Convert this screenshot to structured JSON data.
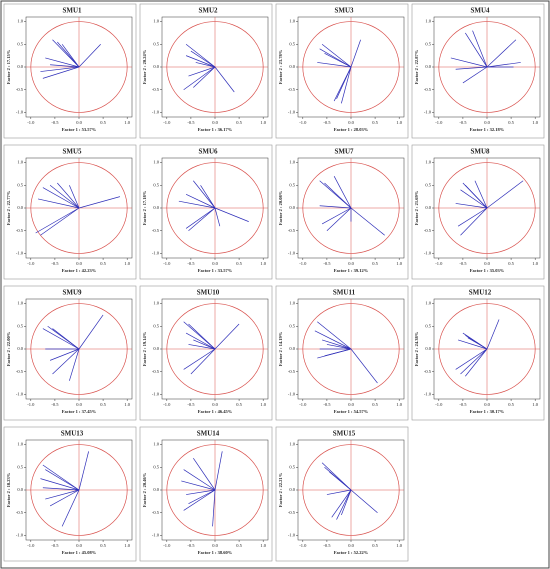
{
  "chart_data": [
    {
      "type": "vector",
      "title": "SMU1",
      "xlabel": "Factor 1 : 53.57%",
      "ylabel": "Factor 2 : 17.15%",
      "color": "#2e2eb8",
      "circle_color": "#d9534f",
      "xlim": [
        -1.1,
        1.1
      ],
      "ylim": [
        -1.1,
        1.1
      ],
      "xticks": [
        {
          "value": -1,
          "label": "-1.0"
        },
        {
          "value": -0.5,
          "label": "-0.5"
        },
        {
          "value": 0,
          "label": "0.0"
        },
        {
          "value": 0.5,
          "label": "0.5"
        },
        {
          "value": 1,
          "label": "1.0"
        }
      ],
      "yticks": [
        {
          "value": -1,
          "label": "-1.0"
        },
        {
          "value": -0.5,
          "label": "-0.5"
        },
        {
          "value": 0,
          "label": "0.0"
        },
        {
          "value": 0.5,
          "label": "0.5"
        },
        {
          "value": 1,
          "label": "1.0"
        }
      ],
      "x": [
        -0.55,
        -0.45,
        -0.35,
        -0.7,
        -0.8,
        -0.75,
        -0.6,
        0.45
      ],
      "y": [
        0.6,
        0.55,
        0.5,
        0.2,
        -0.1,
        -0.25,
        0.05,
        0.5
      ]
    },
    {
      "type": "vector",
      "title": "SMU2",
      "xlabel": "Factor 1 : 36.17%",
      "ylabel": "Factor 2 : 20.24%",
      "color": "#2e2eb8",
      "circle_color": "#d9534f",
      "xlim": [
        -1.1,
        1.1
      ],
      "ylim": [
        -1.1,
        1.1
      ],
      "xticks": [
        {
          "value": -1,
          "label": "-1.0"
        },
        {
          "value": -0.5,
          "label": "-0.5"
        },
        {
          "value": 0,
          "label": "0.0"
        },
        {
          "value": 0.5,
          "label": "0.5"
        },
        {
          "value": 1,
          "label": "1.0"
        }
      ],
      "yticks": [
        {
          "value": -1,
          "label": "-1.0"
        },
        {
          "value": -0.5,
          "label": "-0.5"
        },
        {
          "value": 0,
          "label": "0.0"
        },
        {
          "value": 0.5,
          "label": "0.5"
        },
        {
          "value": 1,
          "label": "1.0"
        }
      ],
      "x": [
        -0.6,
        -0.5,
        -0.55,
        -0.45,
        -0.65,
        -0.4,
        -0.6,
        0.4
      ],
      "y": [
        0.5,
        0.35,
        -0.2,
        -0.45,
        -0.5,
        0.1,
        0.25,
        -0.55
      ]
    },
    {
      "type": "vector",
      "title": "SMU3",
      "xlabel": "Factor 1 : 28.03%",
      "ylabel": "Factor 2 : 23.78%",
      "color": "#2e2eb8",
      "circle_color": "#d9534f",
      "xlim": [
        -1.1,
        1.1
      ],
      "ylim": [
        -1.1,
        1.1
      ],
      "xticks": [
        {
          "value": -1,
          "label": "-1.0"
        },
        {
          "value": -0.5,
          "label": "-0.5"
        },
        {
          "value": 0,
          "label": "0.0"
        },
        {
          "value": 0.5,
          "label": "0.5"
        },
        {
          "value": 1,
          "label": "1.0"
        }
      ],
      "yticks": [
        {
          "value": -1,
          "label": "-1.0"
        },
        {
          "value": -0.5,
          "label": "-0.5"
        },
        {
          "value": 0,
          "label": "0.0"
        },
        {
          "value": 0.5,
          "label": "0.5"
        },
        {
          "value": 1,
          "label": "1.0"
        }
      ],
      "x": [
        -0.6,
        -0.65,
        -0.55,
        -0.7,
        -0.3,
        -0.35,
        -0.2,
        0.2
      ],
      "y": [
        0.5,
        0.4,
        0.3,
        0.1,
        -0.7,
        -0.75,
        -0.8,
        0.6
      ]
    },
    {
      "type": "vector",
      "title": "SMU4",
      "xlabel": "Factor 1 : 32.18%",
      "ylabel": "Factor 2 : 22.87%",
      "color": "#2e2eb8",
      "circle_color": "#d9534f",
      "xlim": [
        -1.1,
        1.1
      ],
      "ylim": [
        -1.1,
        1.1
      ],
      "xticks": [
        {
          "value": -1,
          "label": "-1.0"
        },
        {
          "value": -0.5,
          "label": "-0.5"
        },
        {
          "value": 0,
          "label": "0.0"
        },
        {
          "value": 0.5,
          "label": "0.5"
        },
        {
          "value": 1,
          "label": "1.0"
        }
      ],
      "yticks": [
        {
          "value": -1,
          "label": "-1.0"
        },
        {
          "value": -0.5,
          "label": "-0.5"
        },
        {
          "value": 0,
          "label": "0.0"
        },
        {
          "value": 0.5,
          "label": "0.5"
        },
        {
          "value": 1,
          "label": "1.0"
        }
      ],
      "x": [
        -0.45,
        -0.3,
        -0.75,
        -0.65,
        -0.5,
        0.6,
        0.7,
        0.55
      ],
      "y": [
        0.75,
        0.8,
        0.2,
        -0.05,
        -0.35,
        0.6,
        0.1,
        0.0
      ]
    },
    {
      "type": "vector",
      "title": "SMU5",
      "xlabel": "Factor 1 : 42.23%",
      "ylabel": "Factor 2 : 22.77%",
      "color": "#2e2eb8",
      "circle_color": "#d9534f",
      "xlim": [
        -1.1,
        1.1
      ],
      "ylim": [
        -1.1,
        1.1
      ],
      "xticks": [
        {
          "value": -1,
          "label": "-1.0"
        },
        {
          "value": -0.5,
          "label": "-0.5"
        },
        {
          "value": 0,
          "label": "0.0"
        },
        {
          "value": 0.5,
          "label": "0.5"
        },
        {
          "value": 1,
          "label": "1.0"
        }
      ],
      "yticks": [
        {
          "value": -1,
          "label": "-1.0"
        },
        {
          "value": -0.5,
          "label": "-0.5"
        },
        {
          "value": 0,
          "label": "0.0"
        },
        {
          "value": 0.5,
          "label": "0.5"
        },
        {
          "value": 1,
          "label": "1.0"
        }
      ],
      "x": [
        -0.75,
        -0.6,
        -0.45,
        -0.85,
        -0.9,
        -0.8,
        -0.2,
        0.85
      ],
      "y": [
        0.45,
        0.5,
        0.55,
        0.2,
        -0.55,
        -0.6,
        0.5,
        0.25
      ]
    },
    {
      "type": "vector",
      "title": "SMU6",
      "xlabel": "Factor 1 : 33.57%",
      "ylabel": "Factor 2 : 17.18%",
      "color": "#2e2eb8",
      "circle_color": "#d9534f",
      "xlim": [
        -1.1,
        1.1
      ],
      "ylim": [
        -1.1,
        1.1
      ],
      "xticks": [
        {
          "value": -1,
          "label": "-1.0"
        },
        {
          "value": -0.5,
          "label": "-0.5"
        },
        {
          "value": 0,
          "label": "0.0"
        },
        {
          "value": 0.5,
          "label": "0.5"
        },
        {
          "value": 1,
          "label": "1.0"
        }
      ],
      "yticks": [
        {
          "value": -1,
          "label": "-1.0"
        },
        {
          "value": -0.5,
          "label": "-0.5"
        },
        {
          "value": 0,
          "label": "0.0"
        },
        {
          "value": 0.5,
          "label": "0.5"
        },
        {
          "value": 1,
          "label": "1.0"
        }
      ],
      "x": [
        -0.75,
        -0.6,
        -0.45,
        -0.6,
        -0.55,
        0.1,
        0.7,
        -0.3
      ],
      "y": [
        0.15,
        0.3,
        0.6,
        -0.45,
        -0.5,
        -0.4,
        -0.3,
        0.5
      ]
    },
    {
      "type": "vector",
      "title": "SMU7",
      "xlabel": "Factor 1 : 39.12%",
      "ylabel": "Factor 2 : 20.08%",
      "color": "#2e2eb8",
      "circle_color": "#d9534f",
      "xlim": [
        -1.1,
        1.1
      ],
      "ylim": [
        -1.1,
        1.1
      ],
      "xticks": [
        {
          "value": -1,
          "label": "-1.0"
        },
        {
          "value": -0.5,
          "label": "-0.5"
        },
        {
          "value": 0,
          "label": "0.0"
        },
        {
          "value": 0.5,
          "label": "0.5"
        },
        {
          "value": 1,
          "label": "1.0"
        }
      ],
      "yticks": [
        {
          "value": -1,
          "label": "-1.0"
        },
        {
          "value": -0.5,
          "label": "-0.5"
        },
        {
          "value": 0,
          "label": "0.0"
        },
        {
          "value": 0.5,
          "label": "0.5"
        },
        {
          "value": 1,
          "label": "1.0"
        }
      ],
      "x": [
        -0.65,
        -0.55,
        -0.35,
        -0.65,
        -0.6,
        -0.5,
        0.0,
        0.7
      ],
      "y": [
        0.6,
        0.55,
        0.7,
        0.05,
        -0.35,
        -0.5,
        -0.3,
        -0.6
      ]
    },
    {
      "type": "vector",
      "title": "SMU8",
      "xlabel": "Factor 1 : 35.03%",
      "ylabel": "Factor 2 : 21.69%",
      "color": "#2e2eb8",
      "circle_color": "#d9534f",
      "xlim": [
        -1.1,
        1.1
      ],
      "ylim": [
        -1.1,
        1.1
      ],
      "xticks": [
        {
          "value": -1,
          "label": "-1.0"
        },
        {
          "value": -0.5,
          "label": "-0.5"
        },
        {
          "value": 0,
          "label": "0.0"
        },
        {
          "value": 0.5,
          "label": "0.5"
        },
        {
          "value": 1,
          "label": "1.0"
        }
      ],
      "yticks": [
        {
          "value": -1,
          "label": "-1.0"
        },
        {
          "value": -0.5,
          "label": "-0.5"
        },
        {
          "value": 0,
          "label": "0.0"
        },
        {
          "value": 0.5,
          "label": "0.5"
        },
        {
          "value": 1,
          "label": "1.0"
        }
      ],
      "x": [
        -0.5,
        -0.45,
        -0.55,
        -0.65,
        -0.6,
        -0.55,
        -0.25,
        0.75
      ],
      "y": [
        0.55,
        0.5,
        0.4,
        0.1,
        -0.4,
        -0.6,
        0.6,
        0.6
      ]
    },
    {
      "type": "vector",
      "title": "SMU9",
      "xlabel": "Factor 1 : 37.45%",
      "ylabel": "Factor 2 : 22.00%",
      "color": "#2e2eb8",
      "circle_color": "#d9534f",
      "xlim": [
        -1.1,
        1.1
      ],
      "ylim": [
        -1.1,
        1.1
      ],
      "xticks": [
        {
          "value": -1,
          "label": "-1.0"
        },
        {
          "value": -0.5,
          "label": "-0.5"
        },
        {
          "value": 0,
          "label": "0.0"
        },
        {
          "value": 0.5,
          "label": "0.5"
        },
        {
          "value": 1,
          "label": "1.0"
        }
      ],
      "yticks": [
        {
          "value": -1,
          "label": "-1.0"
        },
        {
          "value": -0.5,
          "label": "-0.5"
        },
        {
          "value": 0,
          "label": "0.0"
        },
        {
          "value": 0.5,
          "label": "0.5"
        },
        {
          "value": 1,
          "label": "1.0"
        }
      ],
      "x": [
        -0.75,
        -0.65,
        -0.55,
        -0.7,
        -0.6,
        -0.55,
        -0.2,
        0.5
      ],
      "y": [
        0.45,
        0.5,
        0.45,
        0.0,
        -0.25,
        -0.55,
        -0.7,
        0.75
      ]
    },
    {
      "type": "vector",
      "title": "SMU10",
      "xlabel": "Factor 1 : 46.45%",
      "ylabel": "Factor 2 : 19.14%",
      "color": "#2e2eb8",
      "circle_color": "#d9534f",
      "xlim": [
        -1.1,
        1.1
      ],
      "ylim": [
        -1.1,
        1.1
      ],
      "xticks": [
        {
          "value": -1,
          "label": "-1.0"
        },
        {
          "value": -0.5,
          "label": "-0.5"
        },
        {
          "value": 0,
          "label": "0.0"
        },
        {
          "value": 0.5,
          "label": "0.5"
        },
        {
          "value": 1,
          "label": "1.0"
        }
      ],
      "yticks": [
        {
          "value": -1,
          "label": "-1.0"
        },
        {
          "value": -0.5,
          "label": "-0.5"
        },
        {
          "value": 0,
          "label": "0.0"
        },
        {
          "value": 0.5,
          "label": "0.5"
        },
        {
          "value": 1,
          "label": "1.0"
        }
      ],
      "x": [
        -0.65,
        -0.55,
        -0.6,
        -0.55,
        -0.65,
        -0.5,
        -0.45,
        0.5
      ],
      "y": [
        0.6,
        0.55,
        0.35,
        0.1,
        -0.45,
        -0.55,
        0.2,
        0.55
      ]
    },
    {
      "type": "vector",
      "title": "SMU11",
      "xlabel": "Factor 1 : 54.57%",
      "ylabel": "Factor 2 : 14.19%",
      "color": "#2e2eb8",
      "circle_color": "#d9534f",
      "xlim": [
        -1.1,
        1.1
      ],
      "ylim": [
        -1.1,
        1.1
      ],
      "xticks": [
        {
          "value": -1,
          "label": "-1.0"
        },
        {
          "value": -0.5,
          "label": "-0.5"
        },
        {
          "value": 0,
          "label": "0.0"
        },
        {
          "value": 0.5,
          "label": "0.5"
        },
        {
          "value": 1,
          "label": "1.0"
        }
      ],
      "yticks": [
        {
          "value": -1,
          "label": "-1.0"
        },
        {
          "value": -0.5,
          "label": "-0.5"
        },
        {
          "value": 0,
          "label": "0.0"
        },
        {
          "value": 0.5,
          "label": "0.5"
        },
        {
          "value": 1,
          "label": "1.0"
        }
      ],
      "x": [
        -0.7,
        -0.75,
        -0.6,
        -0.65,
        -0.7,
        -0.5,
        -0.55,
        0.55
      ],
      "y": [
        0.6,
        0.4,
        0.2,
        0.0,
        -0.2,
        0.1,
        -0.15,
        -0.75
      ]
    },
    {
      "type": "vector",
      "title": "SMU12",
      "xlabel": "Factor 1 : 30.17%",
      "ylabel": "Factor 2 : 24.38%",
      "color": "#2e2eb8",
      "circle_color": "#d9534f",
      "xlim": [
        -1.1,
        1.1
      ],
      "ylim": [
        -1.1,
        1.1
      ],
      "xticks": [
        {
          "value": -1,
          "label": "-1.0"
        },
        {
          "value": -0.5,
          "label": "-0.5"
        },
        {
          "value": 0,
          "label": "0.0"
        },
        {
          "value": 0.5,
          "label": "0.5"
        },
        {
          "value": 1,
          "label": "1.0"
        }
      ],
      "yticks": [
        {
          "value": -1,
          "label": "-1.0"
        },
        {
          "value": -0.5,
          "label": "-0.5"
        },
        {
          "value": 0,
          "label": "0.0"
        },
        {
          "value": 0.5,
          "label": "0.5"
        },
        {
          "value": 1,
          "label": "1.0"
        }
      ],
      "x": [
        -0.6,
        -0.5,
        -0.4,
        -0.45,
        -0.65,
        -0.55,
        -0.45,
        0.25
      ],
      "y": [
        0.2,
        0.35,
        0.25,
        0.3,
        -0.45,
        -0.55,
        -0.6,
        0.65
      ]
    },
    {
      "type": "vector",
      "title": "SMU13",
      "xlabel": "Factor 1 : 45.08%",
      "ylabel": "Factor 2 : 18.23%",
      "color": "#2e2eb8",
      "circle_color": "#d9534f",
      "xlim": [
        -1.1,
        1.1
      ],
      "ylim": [
        -1.1,
        1.1
      ],
      "xticks": [
        {
          "value": -1,
          "label": "-1.0"
        },
        {
          "value": -0.5,
          "label": "-0.5"
        },
        {
          "value": 0,
          "label": "0.0"
        },
        {
          "value": 0.5,
          "label": "0.5"
        },
        {
          "value": 1,
          "label": "1.0"
        }
      ],
      "yticks": [
        {
          "value": -1,
          "label": "-1.0"
        },
        {
          "value": -0.5,
          "label": "-0.5"
        },
        {
          "value": 0,
          "label": "0.0"
        },
        {
          "value": 0.5,
          "label": "0.5"
        },
        {
          "value": 1,
          "label": "1.0"
        }
      ],
      "x": [
        -0.75,
        -0.7,
        -0.8,
        -0.75,
        -0.7,
        -0.6,
        -0.35,
        0.2
      ],
      "y": [
        0.55,
        0.45,
        0.25,
        0.05,
        -0.2,
        -0.35,
        -0.8,
        0.85
      ]
    },
    {
      "type": "vector",
      "title": "SMU14",
      "xlabel": "Factor 1 : 38.60%",
      "ylabel": "Factor 2 : 20.46%",
      "color": "#2e2eb8",
      "circle_color": "#d9534f",
      "xlim": [
        -1.1,
        1.1
      ],
      "ylim": [
        -1.1,
        1.1
      ],
      "xticks": [
        {
          "value": -1,
          "label": "-1.0"
        },
        {
          "value": -0.5,
          "label": "-0.5"
        },
        {
          "value": 0,
          "label": "0.0"
        },
        {
          "value": 0.5,
          "label": "0.5"
        },
        {
          "value": 1,
          "label": "1.0"
        }
      ],
      "yticks": [
        {
          "value": -1,
          "label": "-1.0"
        },
        {
          "value": -0.5,
          "label": "-0.5"
        },
        {
          "value": 0,
          "label": "0.0"
        },
        {
          "value": 0.5,
          "label": "0.5"
        },
        {
          "value": 1,
          "label": "1.0"
        }
      ],
      "x": [
        -0.45,
        -0.65,
        -0.7,
        -0.6,
        -0.55,
        -0.65,
        -0.05,
        0.15
      ],
      "y": [
        0.7,
        0.45,
        0.2,
        -0.1,
        -0.3,
        -0.45,
        -0.8,
        0.85
      ]
    },
    {
      "type": "vector",
      "title": "SMU15",
      "xlabel": "Factor 1 : 52.22%",
      "ylabel": "Factor 2 : 22.21%",
      "color": "#2e2eb8",
      "circle_color": "#d9534f",
      "xlim": [
        -1.1,
        1.1
      ],
      "ylim": [
        -1.1,
        1.1
      ],
      "xticks": [
        {
          "value": -1,
          "label": "-1.0"
        },
        {
          "value": -0.5,
          "label": "-0.5"
        },
        {
          "value": 0,
          "label": "0.0"
        },
        {
          "value": 0.5,
          "label": "0.5"
        },
        {
          "value": 1,
          "label": "1.0"
        }
      ],
      "yticks": [
        {
          "value": -1,
          "label": "-1.0"
        },
        {
          "value": -0.5,
          "label": "-0.5"
        },
        {
          "value": 0,
          "label": "0.0"
        },
        {
          "value": 0.5,
          "label": "0.5"
        },
        {
          "value": 1,
          "label": "1.0"
        }
      ],
      "x": [
        -0.6,
        -0.55,
        -0.45,
        -0.5,
        -0.4,
        -0.3,
        -0.2,
        0.55
      ],
      "y": [
        0.6,
        0.5,
        0.4,
        -0.1,
        -0.6,
        -0.65,
        -0.55,
        -0.5
      ]
    }
  ]
}
